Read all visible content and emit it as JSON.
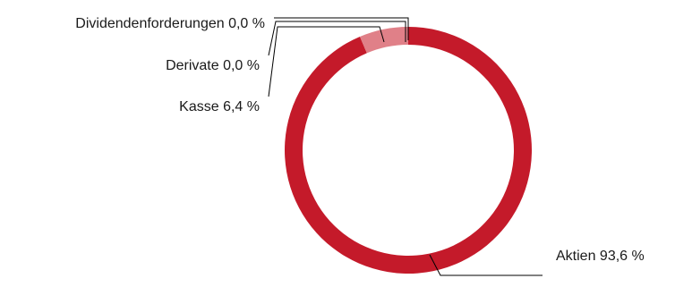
{
  "chart_data": {
    "type": "pie",
    "title": "",
    "slices": [
      {
        "name": "Aktien",
        "value": 93.6,
        "label": "Aktien 93,6 %",
        "color": "#c41a2a"
      },
      {
        "name": "Kasse",
        "value": 6.4,
        "label": "Kasse 6,4 %",
        "color": "#e08088"
      },
      {
        "name": "Derivate",
        "value": 0.0,
        "label": "Derivate 0,0 %",
        "color": "#c41a2a"
      },
      {
        "name": "Dividendenforderungen",
        "value": 0.0,
        "label": "Dividendenforderungen 0,0 %",
        "color": "#c41a2a"
      }
    ]
  }
}
